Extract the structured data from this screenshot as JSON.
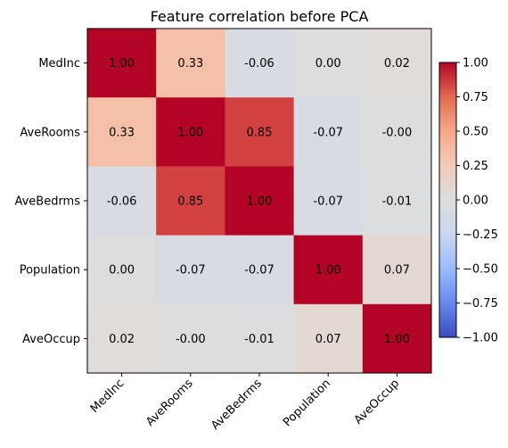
{
  "chart_data": {
    "type": "heatmap",
    "title": "Feature correlation before PCA",
    "xlabel": "",
    "ylabel": "",
    "x_categories": [
      "MedInc",
      "AveRooms",
      "AveBedrms",
      "Population",
      "AveOccup"
    ],
    "y_categories": [
      "MedInc",
      "AveRooms",
      "AveBedrms",
      "Population",
      "AveOccup"
    ],
    "values": [
      [
        1.0,
        0.33,
        -0.06,
        0.0,
        0.02
      ],
      [
        0.33,
        1.0,
        0.85,
        -0.07,
        -0.0
      ],
      [
        -0.06,
        0.85,
        1.0,
        -0.07,
        -0.01
      ],
      [
        0.0,
        -0.07,
        -0.07,
        1.0,
        0.07
      ],
      [
        0.02,
        -0.0,
        -0.01,
        0.07,
        1.0
      ]
    ],
    "cell_labels": [
      [
        "1.00",
        "0.33",
        "-0.06",
        "0.00",
        "0.02"
      ],
      [
        "0.33",
        "1.00",
        "0.85",
        "-0.07",
        "-0.00"
      ],
      [
        "-0.06",
        "0.85",
        "1.00",
        "-0.07",
        "-0.01"
      ],
      [
        "0.00",
        "-0.07",
        "-0.07",
        "1.00",
        "0.07"
      ],
      [
        "0.02",
        "-0.00",
        "-0.01",
        "0.07",
        "1.00"
      ]
    ],
    "colormap": "coolwarm",
    "colormap_stops": [
      "#3b4cc0",
      "#6788ee",
      "#9abbff",
      "#c9d7f0",
      "#dddddd",
      "#f2cbb7",
      "#f7a889",
      "#e26952",
      "#b40426"
    ],
    "vmin": -1.0,
    "vmax": 1.0,
    "colorbar": {
      "ticks": [
        1.0,
        0.75,
        0.5,
        0.25,
        0.0,
        -0.25,
        -0.5,
        -0.75,
        -1.0
      ],
      "tick_labels": [
        "1.00",
        "0.75",
        "0.50",
        "0.25",
        "0.00",
        "−0.25",
        "−0.50",
        "−0.75",
        "−1.00"
      ]
    },
    "x_tick_rotation": 45
  }
}
